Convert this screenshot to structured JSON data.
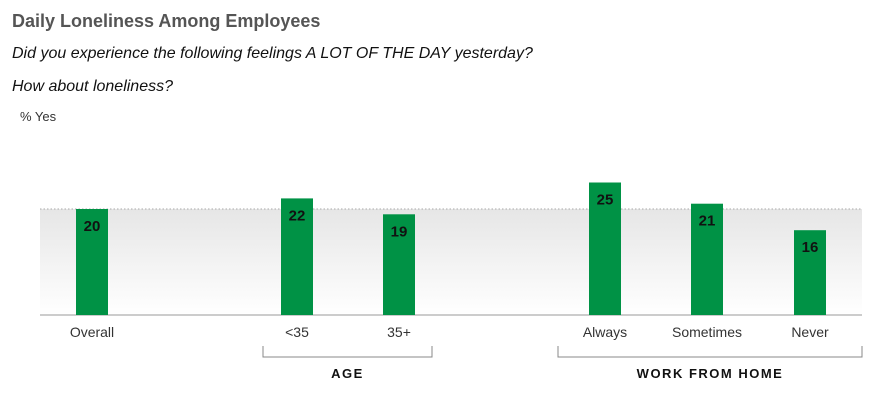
{
  "header": {
    "title": "Daily Loneliness Among Employees",
    "question": "Did you experience the following feelings A LOT OF THE DAY yesterday?",
    "followup": "How about loneliness?",
    "unit_label": "% Yes"
  },
  "colors": {
    "bar": "#009245",
    "reference_band": "#e8e8e8"
  },
  "chart_data": {
    "type": "bar",
    "title": "Daily Loneliness Among Employees",
    "ylabel": "% Yes",
    "categories": [
      "Overall",
      "<35",
      "35+",
      "Always",
      "Sometimes",
      "Never"
    ],
    "values": [
      20,
      22,
      19,
      25,
      21,
      16
    ],
    "ylim": [
      0,
      27
    ],
    "reference_line": 20,
    "groups": [
      {
        "label": "AGE",
        "categories": [
          "<35",
          "35+"
        ]
      },
      {
        "label": "WORK FROM HOME",
        "categories": [
          "Always",
          "Sometimes",
          "Never"
        ]
      }
    ],
    "legend": "none",
    "grid": false
  }
}
